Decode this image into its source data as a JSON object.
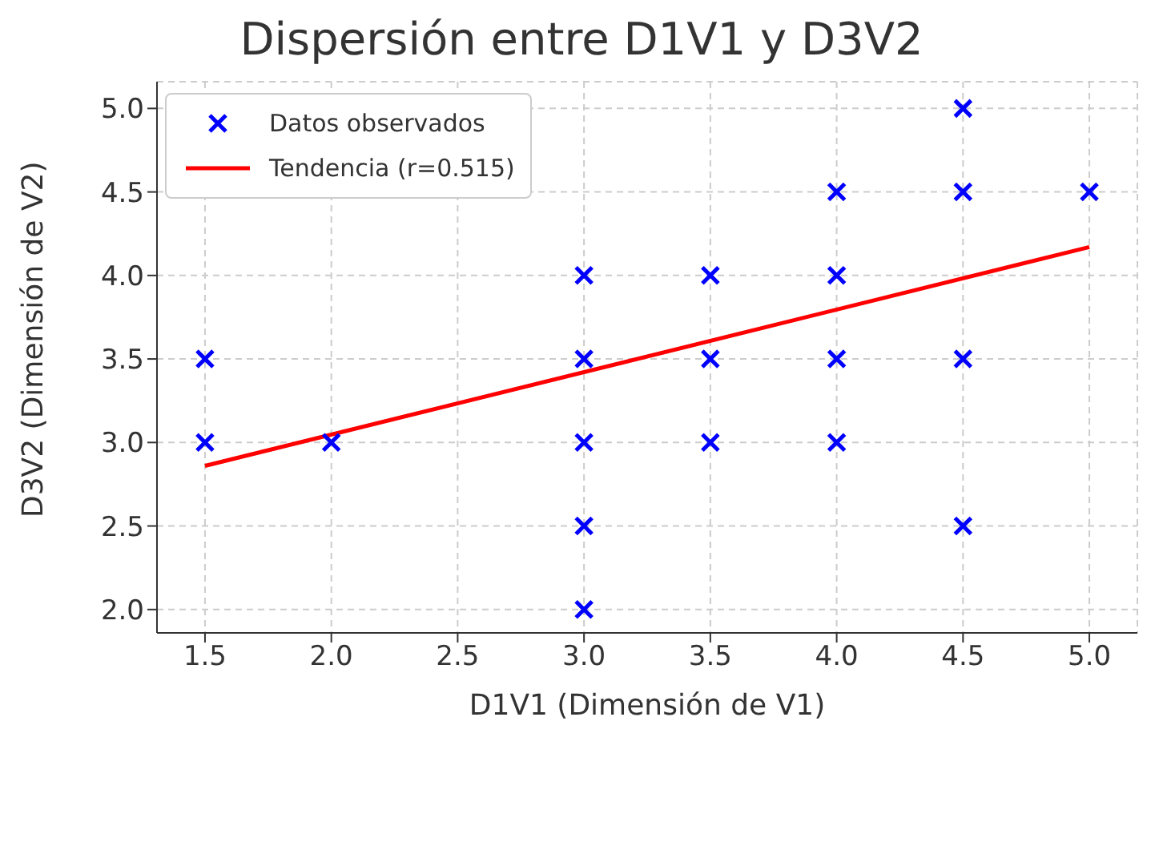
{
  "chart_data": {
    "type": "scatter",
    "title": "Dispersión entre D1V1 y D3V2",
    "xlabel": "D1V1 (Dimensión de V1)",
    "ylabel": "D3V2 (Dimensión de V2)",
    "series": [
      {
        "name": "Datos observados",
        "color": "#0000ff",
        "marker": "cross",
        "x": [
          1.5,
          1.5,
          2.0,
          3.0,
          3.0,
          3.0,
          3.0,
          3.0,
          3.5,
          3.5,
          3.5,
          4.0,
          4.0,
          4.0,
          4.0,
          4.5,
          4.5,
          4.5,
          4.5,
          5.0
        ],
        "values": [
          3.5,
          3.0,
          3.0,
          4.0,
          3.5,
          3.0,
          2.5,
          2.0,
          4.0,
          3.5,
          3.0,
          4.5,
          4.0,
          3.5,
          3.0,
          5.0,
          4.5,
          3.5,
          2.5,
          4.5
        ]
      },
      {
        "name": "Tendencia (r=0.515)",
        "type": "line",
        "color": "#ff0000",
        "line_style": "solid",
        "x": [
          1.5,
          5.0
        ],
        "values": [
          2.86,
          4.17
        ]
      }
    ],
    "xlim": [
      1.31,
      5.19
    ],
    "xticks": [
      1.5,
      {
        "value": 2,
        "label": "2.0"
      },
      2.5,
      {
        "value": 3,
        "label": "3.0"
      },
      3.5,
      {
        "value": 4,
        "label": "4.0"
      },
      4.5,
      {
        "value": 5,
        "label": "5.0"
      }
    ],
    "ylim": [
      1.86,
      5.16
    ],
    "yticks": [
      {
        "value": 2,
        "label": "2.0"
      },
      2.5,
      {
        "value": 3,
        "label": "3.0"
      },
      3.5,
      {
        "value": 4,
        "label": "4.0"
      },
      4.5,
      {
        "value": 5,
        "label": "5.0"
      }
    ],
    "grid": true,
    "legend": "top left"
  }
}
